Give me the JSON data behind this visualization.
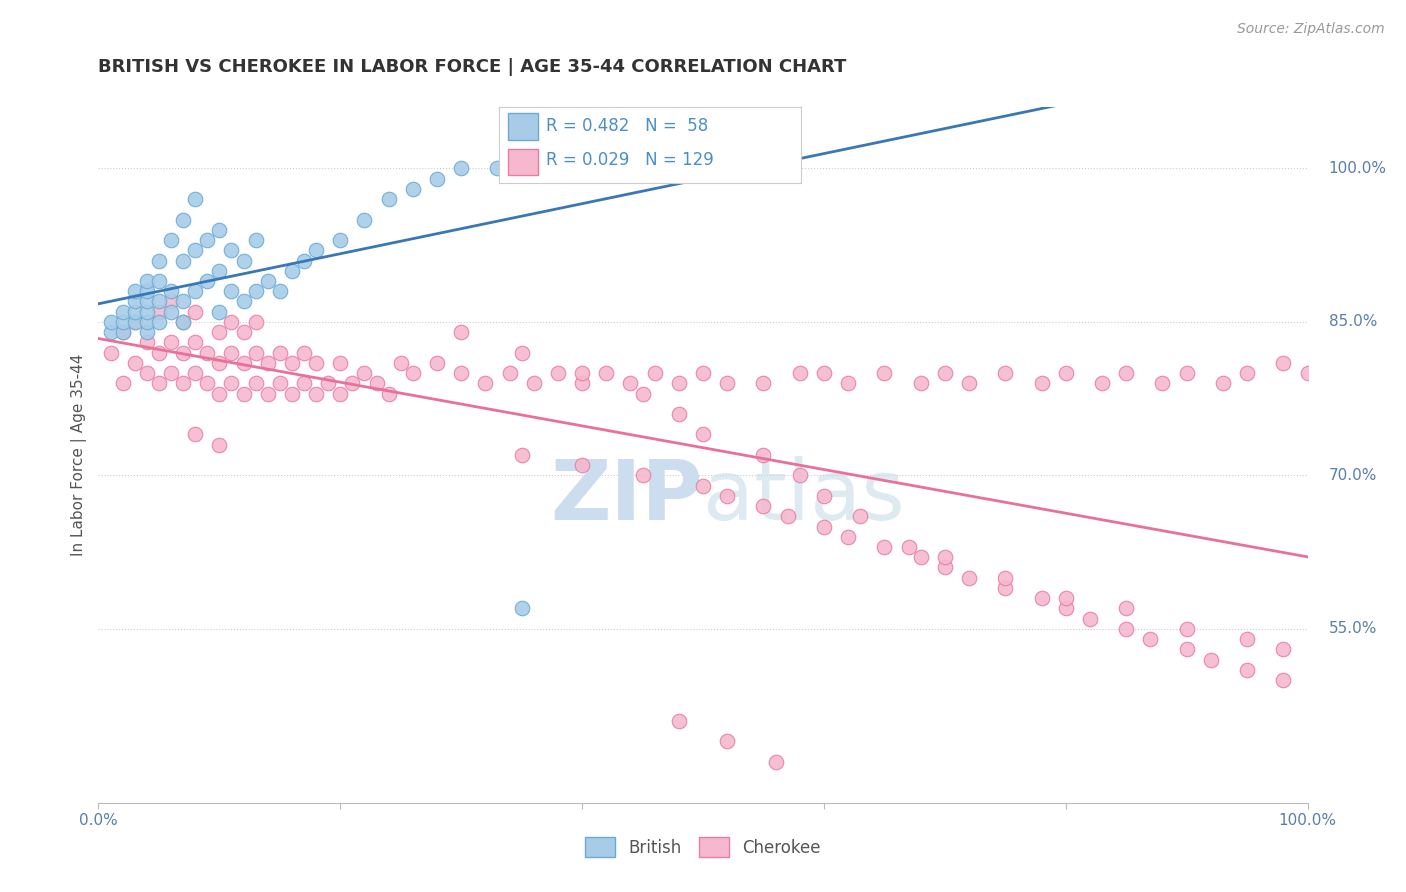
{
  "title": "BRITISH VS CHEROKEE IN LABOR FORCE | AGE 35-44 CORRELATION CHART",
  "source_text": "Source: ZipAtlas.com",
  "ylabel": "In Labor Force | Age 35-44",
  "xlim": [
    0.0,
    1.0
  ],
  "ylim": [
    0.38,
    1.06
  ],
  "yticks_right": [
    0.55,
    0.7,
    0.85,
    1.0
  ],
  "ytick_labels_right": [
    "55.0%",
    "70.0%",
    "85.0%",
    "100.0%"
  ],
  "british_R": 0.482,
  "british_N": 58,
  "cherokee_R": 0.029,
  "cherokee_N": 129,
  "british_color": "#a8cce8",
  "british_edge_color": "#6aaad4",
  "cherokee_color": "#f5b8ce",
  "cherokee_edge_color": "#e87da0",
  "trend_british_color": "#3a78b5",
  "trend_cherokee_color": "#e8709a",
  "watermark_color": "#ccddef",
  "background_color": "#ffffff",
  "grid_color": "#cccccc",
  "title_color": "#333333",
  "axis_label_color": "#555555",
  "right_tick_color": "#5a7fa8",
  "legend_text_color": "#4a90c8",
  "british_x": [
    0.01,
    0.01,
    0.02,
    0.02,
    0.02,
    0.03,
    0.03,
    0.03,
    0.03,
    0.04,
    0.04,
    0.04,
    0.04,
    0.04,
    0.04,
    0.05,
    0.05,
    0.05,
    0.05,
    0.06,
    0.06,
    0.06,
    0.07,
    0.07,
    0.07,
    0.07,
    0.08,
    0.08,
    0.08,
    0.09,
    0.09,
    0.1,
    0.1,
    0.1,
    0.11,
    0.11,
    0.12,
    0.12,
    0.13,
    0.13,
    0.14,
    0.15,
    0.16,
    0.17,
    0.18,
    0.2,
    0.22,
    0.24,
    0.26,
    0.28,
    0.3,
    0.33,
    0.36,
    0.4,
    0.45,
    0.5,
    0.55,
    0.35
  ],
  "british_y": [
    0.84,
    0.85,
    0.84,
    0.85,
    0.86,
    0.85,
    0.86,
    0.87,
    0.88,
    0.84,
    0.85,
    0.86,
    0.87,
    0.88,
    0.89,
    0.85,
    0.87,
    0.89,
    0.91,
    0.86,
    0.88,
    0.93,
    0.85,
    0.87,
    0.91,
    0.95,
    0.88,
    0.92,
    0.97,
    0.89,
    0.93,
    0.86,
    0.9,
    0.94,
    0.88,
    0.92,
    0.87,
    0.91,
    0.88,
    0.93,
    0.89,
    0.88,
    0.9,
    0.91,
    0.92,
    0.93,
    0.95,
    0.97,
    0.98,
    0.99,
    1.0,
    1.0,
    1.0,
    1.0,
    1.0,
    1.0,
    1.0,
    0.57
  ],
  "cherokee_x": [
    0.01,
    0.02,
    0.02,
    0.03,
    0.03,
    0.04,
    0.04,
    0.05,
    0.05,
    0.05,
    0.06,
    0.06,
    0.06,
    0.07,
    0.07,
    0.07,
    0.08,
    0.08,
    0.08,
    0.09,
    0.09,
    0.1,
    0.1,
    0.1,
    0.11,
    0.11,
    0.11,
    0.12,
    0.12,
    0.12,
    0.13,
    0.13,
    0.13,
    0.14,
    0.14,
    0.15,
    0.15,
    0.16,
    0.16,
    0.17,
    0.17,
    0.18,
    0.18,
    0.19,
    0.2,
    0.2,
    0.21,
    0.22,
    0.23,
    0.24,
    0.25,
    0.26,
    0.28,
    0.3,
    0.32,
    0.34,
    0.36,
    0.38,
    0.4,
    0.42,
    0.44,
    0.46,
    0.48,
    0.5,
    0.52,
    0.55,
    0.58,
    0.6,
    0.62,
    0.65,
    0.68,
    0.7,
    0.72,
    0.75,
    0.78,
    0.8,
    0.83,
    0.85,
    0.88,
    0.9,
    0.93,
    0.95,
    0.98,
    1.0,
    0.08,
    0.1,
    0.35,
    0.4,
    0.45,
    0.5,
    0.52,
    0.55,
    0.57,
    0.6,
    0.62,
    0.65,
    0.68,
    0.7,
    0.72,
    0.75,
    0.78,
    0.8,
    0.82,
    0.85,
    0.87,
    0.9,
    0.92,
    0.95,
    0.98,
    0.3,
    0.35,
    0.4,
    0.45,
    0.48,
    0.5,
    0.55,
    0.58,
    0.6,
    0.63,
    0.67,
    0.7,
    0.75,
    0.8,
    0.85,
    0.9,
    0.95,
    0.98,
    0.48,
    0.52,
    0.56
  ],
  "cherokee_y": [
    0.82,
    0.79,
    0.84,
    0.81,
    0.85,
    0.8,
    0.83,
    0.79,
    0.82,
    0.86,
    0.8,
    0.83,
    0.87,
    0.79,
    0.82,
    0.85,
    0.8,
    0.83,
    0.86,
    0.79,
    0.82,
    0.78,
    0.81,
    0.84,
    0.79,
    0.82,
    0.85,
    0.78,
    0.81,
    0.84,
    0.79,
    0.82,
    0.85,
    0.78,
    0.81,
    0.79,
    0.82,
    0.78,
    0.81,
    0.79,
    0.82,
    0.78,
    0.81,
    0.79,
    0.78,
    0.81,
    0.79,
    0.8,
    0.79,
    0.78,
    0.81,
    0.8,
    0.81,
    0.8,
    0.79,
    0.8,
    0.79,
    0.8,
    0.79,
    0.8,
    0.79,
    0.8,
    0.79,
    0.8,
    0.79,
    0.79,
    0.8,
    0.8,
    0.79,
    0.8,
    0.79,
    0.8,
    0.79,
    0.8,
    0.79,
    0.8,
    0.79,
    0.8,
    0.79,
    0.8,
    0.79,
    0.8,
    0.81,
    0.8,
    0.74,
    0.73,
    0.72,
    0.71,
    0.7,
    0.69,
    0.68,
    0.67,
    0.66,
    0.65,
    0.64,
    0.63,
    0.62,
    0.61,
    0.6,
    0.59,
    0.58,
    0.57,
    0.56,
    0.55,
    0.54,
    0.53,
    0.52,
    0.51,
    0.5,
    0.84,
    0.82,
    0.8,
    0.78,
    0.76,
    0.74,
    0.72,
    0.7,
    0.68,
    0.66,
    0.63,
    0.62,
    0.6,
    0.58,
    0.57,
    0.55,
    0.54,
    0.53,
    0.46,
    0.44,
    0.42
  ]
}
